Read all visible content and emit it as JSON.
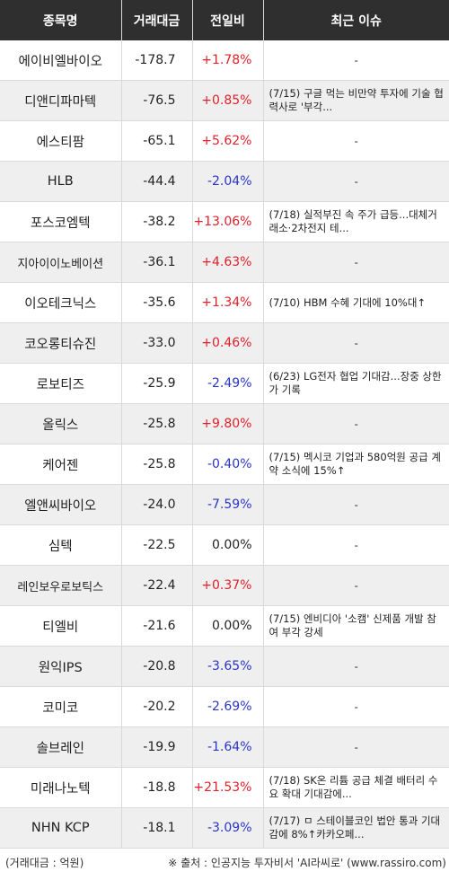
{
  "headers": {
    "name": "종목명",
    "volume": "거래대금",
    "change": "전일비",
    "issue": "최근 이슈"
  },
  "colors": {
    "up": "#e0202a",
    "down": "#2a35c4",
    "flat": "#222222",
    "header_bg": "#2f2f2f"
  },
  "rows": [
    {
      "name": "에이비엘바이오",
      "volume": "-178.7",
      "change": "+1.78%",
      "dir": "up",
      "issue": "-"
    },
    {
      "name": "디앤디파마텍",
      "volume": "-76.5",
      "change": "+0.85%",
      "dir": "up",
      "issue": "(7/15) 구글 먹는 비만약 투자에 기술 협력사로 '부각..."
    },
    {
      "name": "에스티팜",
      "volume": "-65.1",
      "change": "+5.62%",
      "dir": "up",
      "issue": "-"
    },
    {
      "name": "HLB",
      "volume": "-44.4",
      "change": "-2.04%",
      "dir": "down",
      "issue": "-"
    },
    {
      "name": "포스코엠텍",
      "volume": "-38.2",
      "change": "+13.06%",
      "dir": "up",
      "issue": "(7/18) 실적부진 속 주가 급등...대체거래소·2차전지 테..."
    },
    {
      "name": "지아이이노베이션",
      "volume": "-36.1",
      "change": "+4.63%",
      "dir": "up",
      "issue": "-"
    },
    {
      "name": "이오테크닉스",
      "volume": "-35.6",
      "change": "+1.34%",
      "dir": "up",
      "issue": "(7/10) HBM 수혜 기대에 10%대↑"
    },
    {
      "name": "코오롱티슈진",
      "volume": "-33.0",
      "change": "+0.46%",
      "dir": "up",
      "issue": "-"
    },
    {
      "name": "로보티즈",
      "volume": "-25.9",
      "change": "-2.49%",
      "dir": "down",
      "issue": "(6/23) LG전자 협업 기대감...장중 상한가 기록"
    },
    {
      "name": "올릭스",
      "volume": "-25.8",
      "change": "+9.80%",
      "dir": "up",
      "issue": "-"
    },
    {
      "name": "케어젠",
      "volume": "-25.8",
      "change": "-0.40%",
      "dir": "down",
      "issue": "(7/15) 멕시코 기업과 580억원 공급 계약 소식에 15%↑"
    },
    {
      "name": "엘앤씨바이오",
      "volume": "-24.0",
      "change": "-7.59%",
      "dir": "down",
      "issue": "-"
    },
    {
      "name": "심텍",
      "volume": "-22.5",
      "change": "0.00%",
      "dir": "flat",
      "issue": "-"
    },
    {
      "name": "레인보우로보틱스",
      "volume": "-22.4",
      "change": "+0.37%",
      "dir": "up",
      "issue": "-"
    },
    {
      "name": "티엘비",
      "volume": "-21.6",
      "change": "0.00%",
      "dir": "flat",
      "issue": "(7/15) 엔비디아 '소캠' 신제품 개발 참여 부각 강세"
    },
    {
      "name": "원익IPS",
      "volume": "-20.8",
      "change": "-3.65%",
      "dir": "down",
      "issue": "-"
    },
    {
      "name": "코미코",
      "volume": "-20.2",
      "change": "-2.69%",
      "dir": "down",
      "issue": "-"
    },
    {
      "name": "솔브레인",
      "volume": "-19.9",
      "change": "-1.64%",
      "dir": "down",
      "issue": "-"
    },
    {
      "name": "미래나노텍",
      "volume": "-18.8",
      "change": "+21.53%",
      "dir": "up",
      "issue": "(7/18) SK온 리튬 공급 체결 배터리 수요 확대 기대감에..."
    },
    {
      "name": "NHN KCP",
      "volume": "-18.1",
      "change": "-3.09%",
      "dir": "down",
      "issue": "(7/17) ㅁ 스테이블코인 법안 통과 기대감에 8%↑카카오페..."
    }
  ],
  "footer": {
    "unit": "(거래대금 : 억원)",
    "source": "※ 출처 : 인공지능 투자비서 'AI라씨로' (www.rassiro.com)"
  }
}
